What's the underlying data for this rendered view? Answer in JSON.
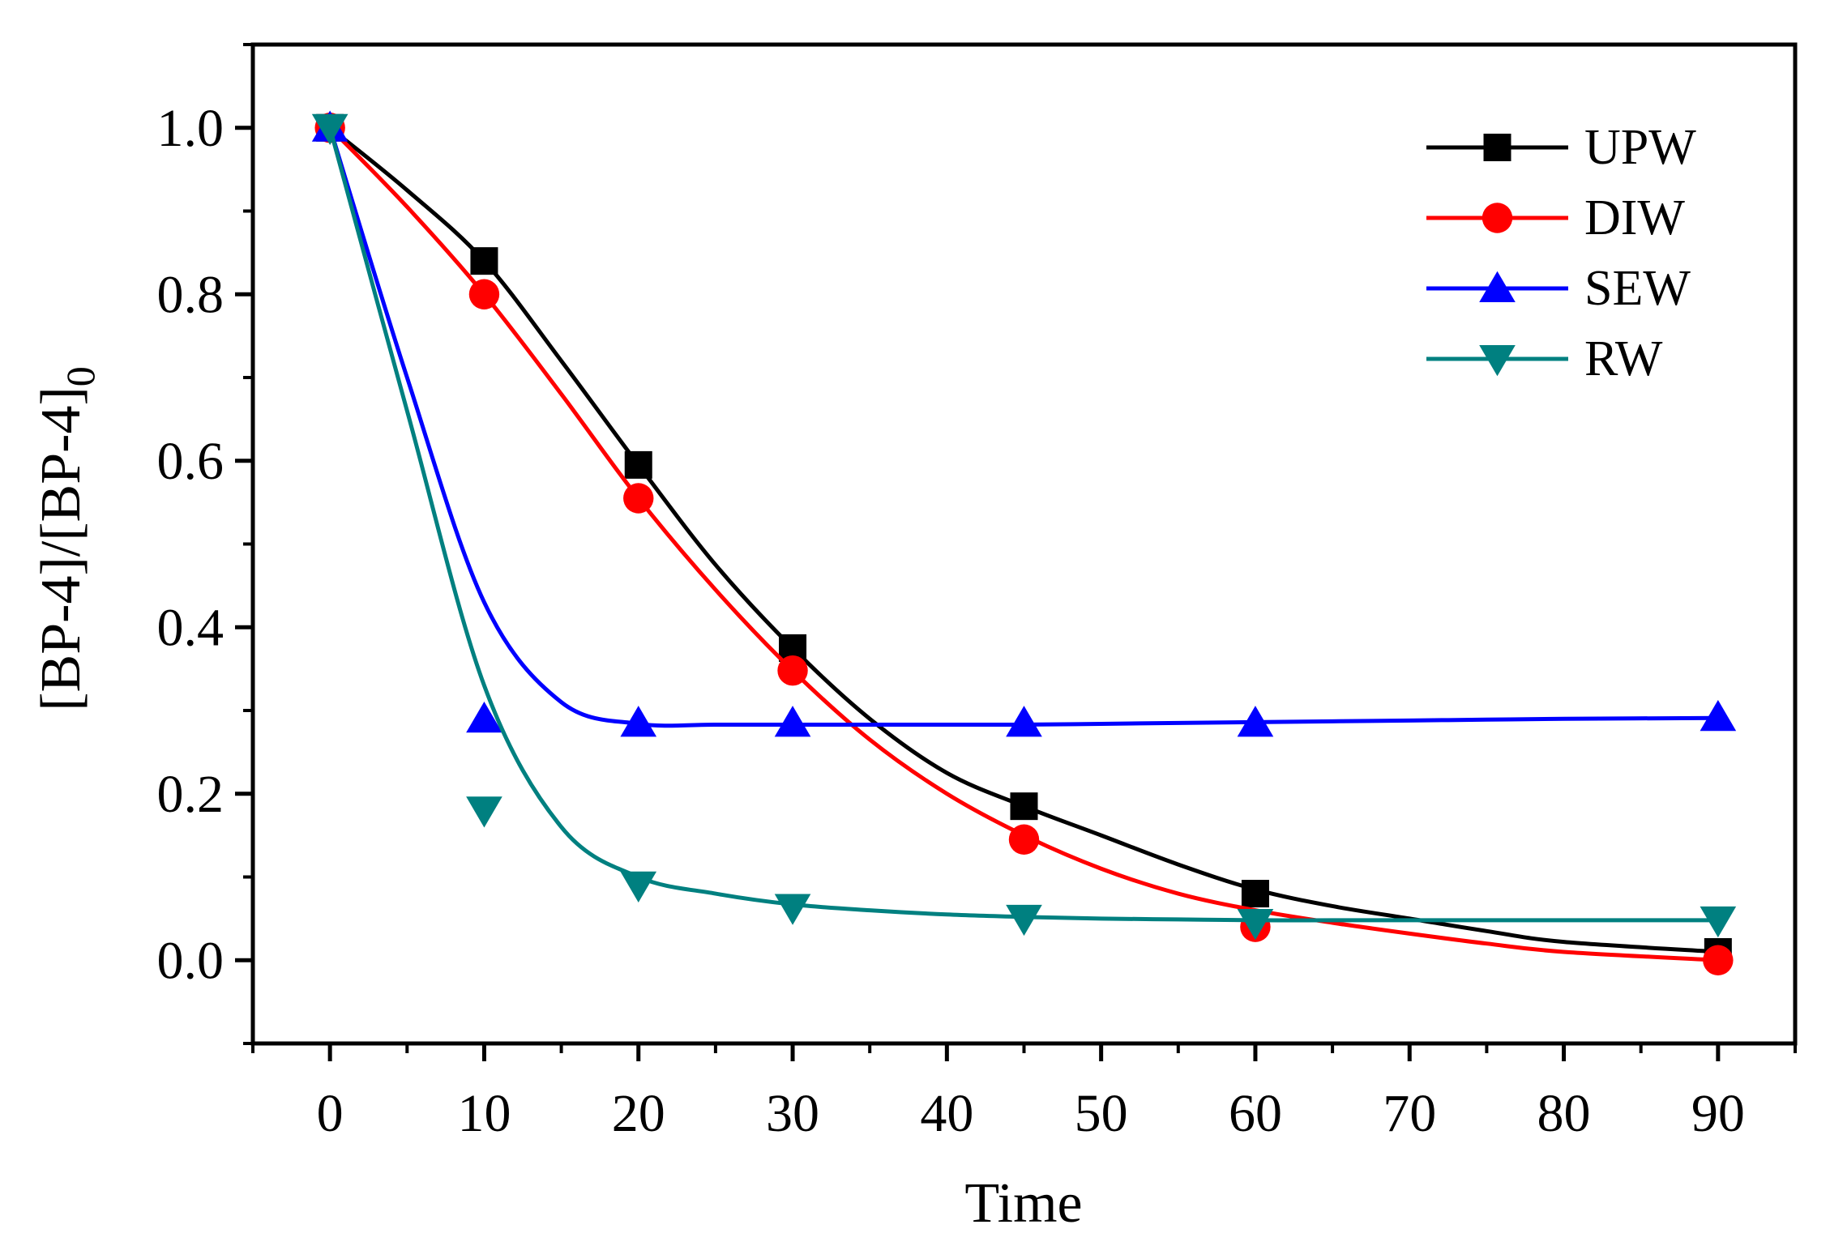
{
  "chart_data": {
    "type": "line",
    "title": "",
    "xlabel": "Time",
    "ylabel": "[BP-4]/[BP-4]",
    "ylabel_subscript": "0",
    "xlim": [
      -5,
      95
    ],
    "ylim": [
      -0.1,
      1.1
    ],
    "x_ticks": [
      0,
      10,
      20,
      30,
      40,
      50,
      60,
      70,
      80,
      90
    ],
    "y_ticks": [
      0.0,
      0.2,
      0.4,
      0.6,
      0.8,
      1.0
    ],
    "x_tick_labels": [
      "0",
      "10",
      "20",
      "30",
      "40",
      "50",
      "60",
      "70",
      "80",
      "90"
    ],
    "y_tick_labels": [
      "0.0",
      "0.2",
      "0.4",
      "0.6",
      "0.8",
      "1.0"
    ],
    "legend_position": "top-right",
    "series": [
      {
        "name": "UPW",
        "color": "#000000",
        "marker": "square",
        "x": [
          0,
          10,
          20,
          30,
          45,
          60,
          90
        ],
        "values": [
          1.0,
          0.84,
          0.595,
          0.375,
          0.185,
          0.08,
          0.01
        ],
        "fit": [
          1.0,
          0.925,
          0.84,
          0.72,
          0.595,
          0.475,
          0.375,
          0.29,
          0.225,
          0.185,
          0.15,
          0.115,
          0.085,
          0.065,
          0.05,
          0.035,
          0.022,
          0.01
        ]
      },
      {
        "name": "DIW",
        "color": "#ff0000",
        "marker": "circle",
        "x": [
          0,
          10,
          20,
          30,
          45,
          60,
          90
        ],
        "values": [
          1.0,
          0.8,
          0.555,
          0.348,
          0.145,
          0.04,
          0.0
        ],
        "fit": [
          1.0,
          0.905,
          0.8,
          0.68,
          0.555,
          0.445,
          0.348,
          0.265,
          0.2,
          0.15,
          0.11,
          0.08,
          0.06,
          0.045,
          0.032,
          0.02,
          0.01,
          0.0
        ]
      },
      {
        "name": "SEW",
        "color": "#0000ff",
        "marker": "triangle-up",
        "x": [
          0,
          10,
          20,
          30,
          45,
          60,
          90
        ],
        "values": [
          1.0,
          0.29,
          0.285,
          0.285,
          0.285,
          0.285,
          0.292
        ],
        "fit": [
          1.0,
          0.7,
          0.43,
          0.31,
          0.284,
          0.283,
          0.283,
          0.283,
          0.283,
          0.283,
          0.284,
          0.285,
          0.286,
          0.287,
          0.288,
          0.289,
          0.29,
          0.291
        ]
      },
      {
        "name": "RW",
        "color": "#008080",
        "marker": "triangle-down",
        "x": [
          0,
          10,
          20,
          30,
          45,
          60,
          90
        ],
        "values": [
          1.0,
          0.18,
          0.09,
          0.063,
          0.05,
          0.045,
          0.048
        ],
        "fit": [
          1.0,
          0.66,
          0.33,
          0.16,
          0.1,
          0.08,
          0.067,
          0.06,
          0.055,
          0.052,
          0.05,
          0.049,
          0.048,
          0.048,
          0.048,
          0.048,
          0.048,
          0.048
        ]
      }
    ],
    "fit_x": [
      0,
      5,
      10,
      15,
      20,
      25,
      30,
      35,
      40,
      45,
      50,
      55,
      60,
      65,
      70,
      75,
      80,
      90
    ]
  }
}
